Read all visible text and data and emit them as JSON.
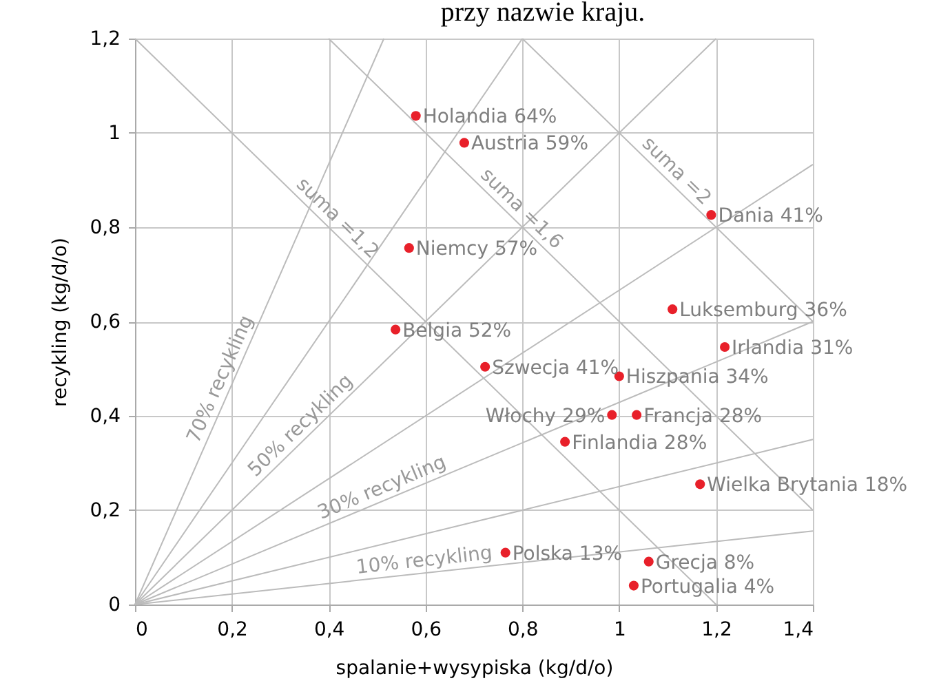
{
  "chart_data": {
    "type": "scatter",
    "title": "przy nazwie kraju.",
    "xlabel": "spalanie+wysypiska (kg/d/o)",
    "ylabel": "recykling (kg/d/o)",
    "xlim": [
      0,
      1.4
    ],
    "ylim": [
      0,
      1.2
    ],
    "xticks": [
      0,
      {
        "value": 0.2,
        "label": "0,2"
      },
      {
        "value": 0.4,
        "label": "0,4"
      },
      {
        "value": 0.6,
        "label": "0,6"
      },
      {
        "value": 0.8,
        "label": "0,8"
      },
      1,
      {
        "value": 1.2,
        "label": "1,2"
      },
      {
        "value": 1.4,
        "label": "1,4"
      }
    ],
    "yticks": [
      0,
      {
        "value": 0.2,
        "label": "0,2"
      },
      {
        "value": 0.4,
        "label": "0,4"
      },
      {
        "value": 0.6,
        "label": "0,6"
      },
      {
        "value": 0.8,
        "label": "0,8"
      },
      1,
      {
        "value": 1.2,
        "label": "1,2"
      }
    ],
    "grid": true,
    "series": [
      {
        "marker": "circle",
        "color": "#e8202a",
        "x": [
          0.58,
          0.68,
          1.19,
          0.566,
          1.11,
          1.218,
          0.538,
          0.723,
          1.0,
          0.985,
          1.036,
          0.888,
          1.167,
          0.765,
          1.061,
          1.03
        ],
        "values": [
          1.036,
          0.979,
          0.826,
          0.756,
          0.626,
          0.546,
          0.583,
          0.504,
          0.484,
          0.402,
          0.402,
          0.345,
          0.255,
          0.11,
          0.091,
          0.04
        ],
        "value_labels": [
          "Holandia 64%",
          "Austria 59%",
          "Dania 41%",
          "Niemcy 57%",
          "Luksemburg 36%",
          "Irlandia 31%",
          "Belgia 52%",
          "Szwecja 41%",
          "Hiszpania 34%",
          "Włochy 29%",
          "Francja 28%",
          "Finlandia 28%",
          "Wielka Brytania 18%",
          "Polska 13%",
          "Grecja 8%",
          "Portugalia 4%"
        ]
      },
      {
        "type": "line",
        "color": "#bbbbbb",
        "x": [
          0,
          1.4
        ],
        "values": [
          0,
          0.156
        ]
      },
      {
        "type": "line",
        "color": "#bbbbbb",
        "x": [
          0,
          1.4
        ],
        "values": [
          0,
          0.35
        ]
      },
      {
        "type": "line",
        "color": "#bbbbbb",
        "x": [
          0,
          1.4
        ],
        "values": [
          0,
          0.6
        ]
      },
      {
        "type": "line",
        "color": "#bbbbbb",
        "x": [
          0,
          1.4
        ],
        "values": [
          0,
          0.933
        ]
      },
      {
        "type": "line",
        "color": "#bbbbbb",
        "x": [
          0,
          1.2
        ],
        "values": [
          0,
          1.2
        ]
      },
      {
        "type": "line",
        "color": "#bbbbbb",
        "x": [
          0,
          0.8
        ],
        "values": [
          0,
          1.2
        ]
      },
      {
        "type": "line",
        "color": "#bbbbbb",
        "x": [
          0,
          0.514
        ],
        "values": [
          0,
          1.2
        ]
      },
      {
        "type": "line",
        "color": "#bbbbbb",
        "x": [
          0,
          1.2
        ],
        "values": [
          1.2,
          0
        ]
      },
      {
        "type": "line",
        "color": "#bbbbbb",
        "x": [
          0.4,
          1.4
        ],
        "values": [
          1.2,
          0.2
        ]
      },
      {
        "type": "line",
        "color": "#bbbbbb",
        "x": [
          0.8,
          1.4
        ],
        "values": [
          1.2,
          0.6
        ]
      }
    ],
    "annotations": [
      {
        "text": "70% recykling",
        "x": 0.2,
        "y": 0.467
      },
      {
        "text": "50% recykling",
        "x": 0.36,
        "y": 0.36
      },
      {
        "text": "30% recykling",
        "x": 0.52,
        "y": 0.223
      },
      {
        "text": "10% recykling",
        "x": 0.6,
        "y": 0.067
      },
      {
        "text": "suma =1,2",
        "x": 0.4,
        "y": 0.8
      },
      {
        "text": "suma =1,6",
        "x": 0.78,
        "y": 0.82
      },
      {
        "text": "suma =2",
        "x": 1.1,
        "y": 0.9
      }
    ]
  }
}
